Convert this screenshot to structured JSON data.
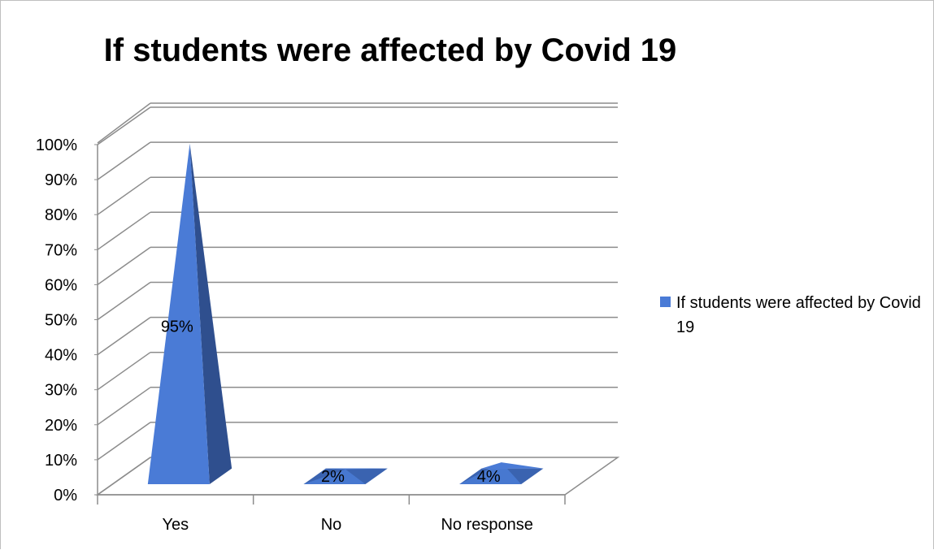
{
  "chart_data": {
    "type": "bar",
    "title": "If students were affected by Covid 19",
    "categories": [
      "Yes",
      "No",
      "No response"
    ],
    "series": [
      {
        "name": "If students were affected by Covid 19",
        "values": [
          95,
          2,
          4
        ],
        "labels": [
          "95%",
          "2%",
          "4%"
        ]
      }
    ],
    "ylim": [
      0,
      100
    ],
    "yticks": [
      "0%",
      "10%",
      "20%",
      "30%",
      "40%",
      "50%",
      "60%",
      "70%",
      "80%",
      "90%",
      "100%"
    ],
    "grid": true,
    "legend_position": "right",
    "shape": "3d-pyramid",
    "colors": {
      "front": "#4a7bd6",
      "side": "#2f4f8e",
      "top": "#3a63b0",
      "grid": "#8c8c8c"
    }
  }
}
